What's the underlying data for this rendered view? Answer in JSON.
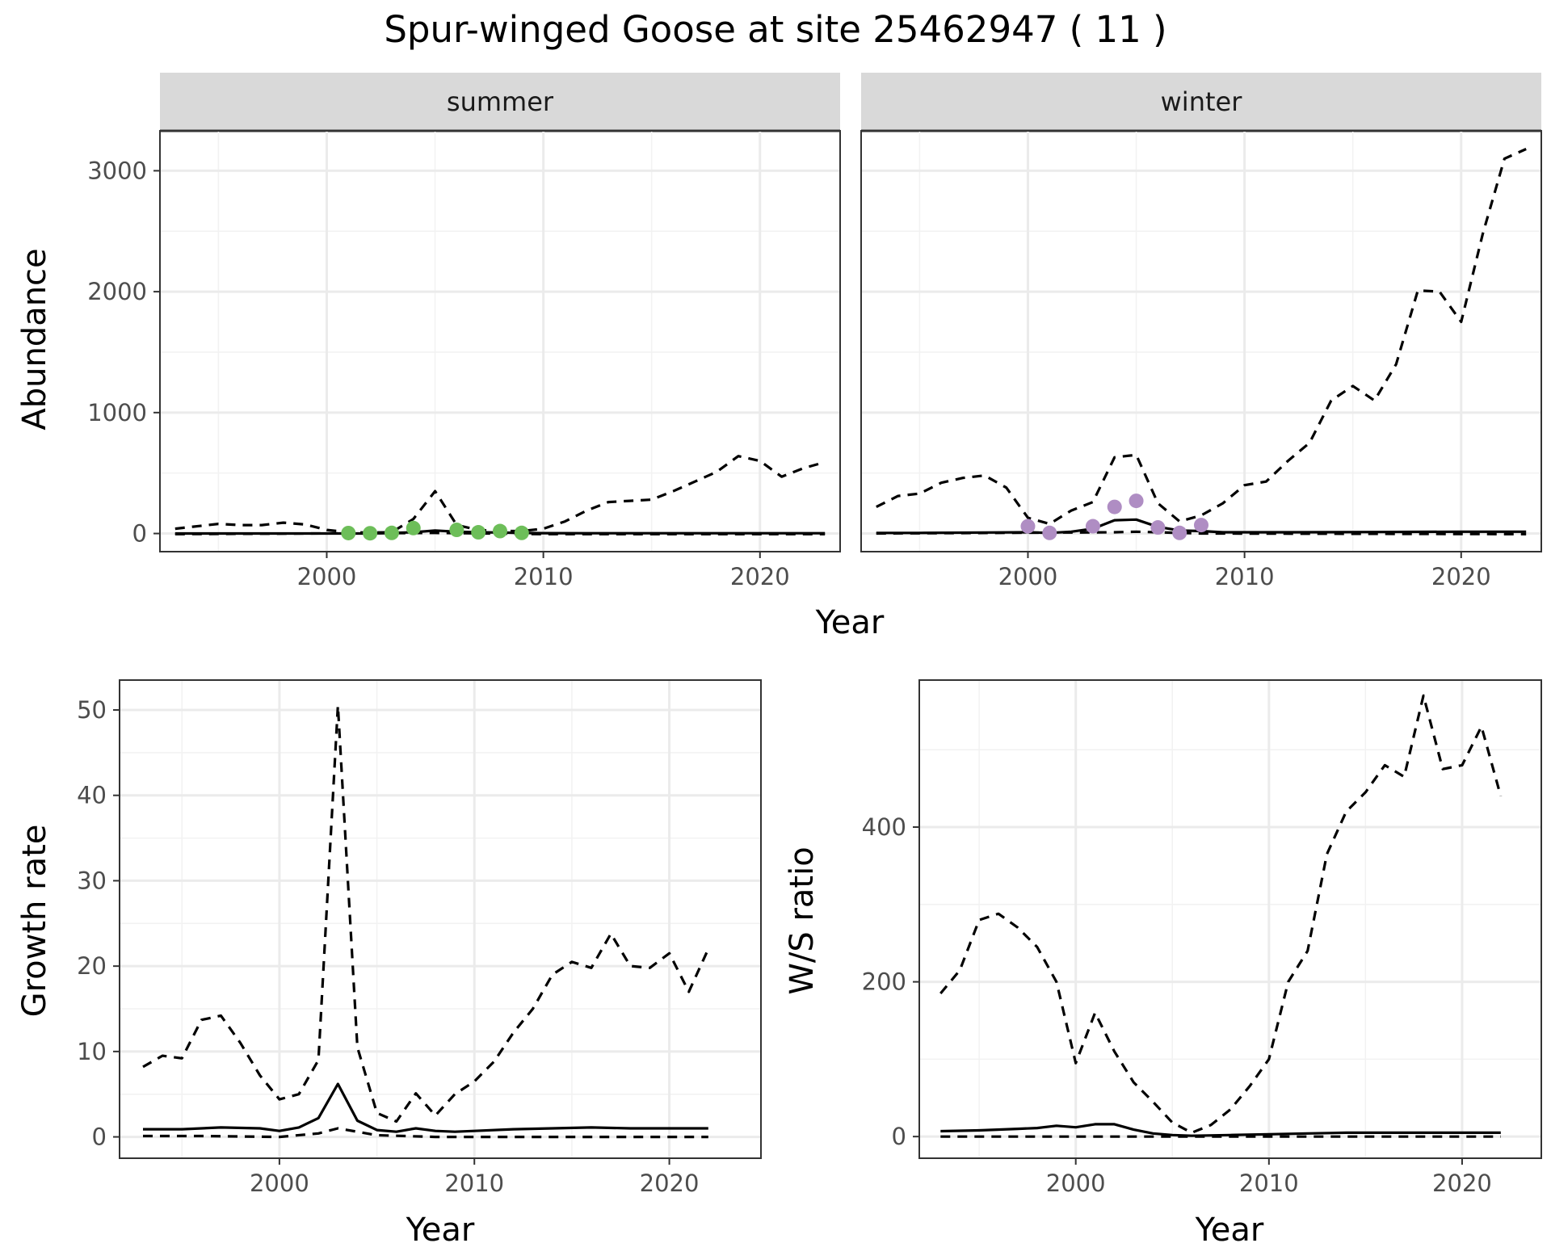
{
  "title": "Spur-winged Goose at site 25462947 ( 11 )",
  "colors": {
    "summer_points": "#6DBE59",
    "winter_points": "#AF8DC3",
    "lines": "#000000",
    "strip_bg": "#D9D9D9",
    "grid": "#EBEBEB"
  },
  "chart_data": [
    {
      "type": "line",
      "facet": "summer",
      "xlabel": "Year",
      "ylabel": "Abundance",
      "xlim": [
        1992.3,
        2023.7
      ],
      "ylim": [
        -150,
        3330
      ],
      "xticks": [
        2000,
        2010,
        2020
      ],
      "yticks": [
        0,
        1000,
        2000,
        3000
      ],
      "grid": true,
      "series": [
        {
          "style": "solid",
          "x": [
            1993,
            1995,
            1997,
            1999,
            2000,
            2001,
            2002,
            2003,
            2004,
            2005,
            2006,
            2007,
            2008,
            2009,
            2010,
            2012,
            2014,
            2016,
            2018,
            2020,
            2022,
            2023
          ],
          "y": [
            0,
            0,
            0,
            0,
            0,
            0,
            0,
            5,
            10,
            25,
            15,
            10,
            8,
            5,
            3,
            2,
            2,
            2,
            2,
            2,
            2,
            2
          ]
        },
        {
          "style": "dashed",
          "x": [
            1993,
            1995,
            1996,
            1997,
            1998,
            1999,
            2000,
            2001,
            2002,
            2003,
            2004,
            2005,
            2006,
            2007,
            2008,
            2009,
            2010,
            2011,
            2012,
            2013,
            2014,
            2015,
            2016,
            2017,
            2018,
            2019,
            2020,
            2021,
            2022,
            2023
          ],
          "y": [
            40,
            80,
            70,
            70,
            90,
            75,
            30,
            10,
            8,
            10,
            120,
            350,
            70,
            30,
            20,
            20,
            40,
            100,
            190,
            260,
            270,
            280,
            350,
            430,
            510,
            640,
            600,
            470,
            540,
            590
          ]
        },
        {
          "style": "dashed",
          "x": [
            1993,
            2005,
            2010,
            2023
          ],
          "y": [
            -5,
            5,
            -5,
            -5
          ]
        }
      ],
      "points": {
        "x": [
          2001,
          2002,
          2003,
          2004,
          2006,
          2007,
          2008,
          2009
        ],
        "y": [
          4,
          2,
          5,
          45,
          30,
          10,
          20,
          5
        ]
      }
    },
    {
      "type": "line",
      "facet": "winter",
      "xlabel": "Year",
      "ylabel": "Abundance",
      "xlim": [
        1992.3,
        2023.7
      ],
      "ylim": [
        -150,
        3330
      ],
      "xticks": [
        2000,
        2010,
        2020
      ],
      "yticks": [
        0,
        1000,
        2000,
        3000
      ],
      "grid": true,
      "series": [
        {
          "style": "solid",
          "x": [
            1993,
            1995,
            1998,
            2000,
            2001,
            2002,
            2003,
            2004,
            2005,
            2006,
            2007,
            2008,
            2009,
            2012,
            2016,
            2020,
            2023
          ],
          "y": [
            5,
            5,
            8,
            10,
            5,
            15,
            40,
            110,
            115,
            55,
            25,
            20,
            10,
            10,
            12,
            15,
            15
          ]
        },
        {
          "style": "dashed",
          "x": [
            1993,
            1994,
            1995,
            1996,
            1997,
            1998,
            1999,
            2000,
            2001,
            2002,
            2003,
            2004,
            2005,
            2006,
            2007,
            2008,
            2009,
            2010,
            2011,
            2012,
            2013,
            2014,
            2015,
            2016,
            2017,
            2018,
            2019,
            2020,
            2021,
            2022,
            2023
          ],
          "y": [
            220,
            310,
            330,
            420,
            460,
            480,
            380,
            130,
            80,
            190,
            260,
            630,
            650,
            250,
            100,
            150,
            250,
            400,
            430,
            600,
            750,
            1100,
            1220,
            1100,
            1400,
            2010,
            2000,
            1750,
            2480,
            3100,
            3180
          ]
        },
        {
          "style": "dashed",
          "x": [
            1993,
            2004,
            2005,
            2008,
            2023
          ],
          "y": [
            0,
            10,
            15,
            0,
            -5
          ]
        }
      ],
      "points": {
        "x": [
          2000,
          2001,
          2003,
          2004,
          2005,
          2006,
          2007,
          2008
        ],
        "y": [
          60,
          5,
          60,
          220,
          270,
          50,
          5,
          70
        ]
      }
    },
    {
      "type": "line",
      "xlabel": "Year",
      "ylabel": "Growth rate",
      "xlim": [
        1991.8,
        2024.7
      ],
      "ylim": [
        -2.5,
        53.5
      ],
      "xticks": [
        2000,
        2010,
        2020
      ],
      "yticks": [
        0,
        10,
        20,
        30,
        40,
        50
      ],
      "grid": true,
      "series": [
        {
          "style": "solid",
          "x": [
            1993,
            1995,
            1997,
            1999,
            2000,
            2001,
            2002,
            2003,
            2004,
            2005,
            2006,
            2007,
            2008,
            2009,
            2010,
            2012,
            2014,
            2016,
            2018,
            2020,
            2022
          ],
          "y": [
            0.9,
            0.9,
            1.1,
            1.0,
            0.7,
            1.1,
            2.2,
            6.2,
            1.9,
            0.8,
            0.6,
            1.0,
            0.7,
            0.6,
            0.7,
            0.9,
            1.0,
            1.1,
            1.0,
            1.0,
            1.0
          ]
        },
        {
          "style": "dashed",
          "x": [
            1993,
            1994,
            1995,
            1996,
            1997,
            1998,
            1999,
            2000,
            2001,
            2002,
            2003,
            2004,
            2005,
            2006,
            2007,
            2008,
            2009,
            2010,
            2011,
            2012,
            2013,
            2014,
            2015,
            2016,
            2017,
            2018,
            2019,
            2020,
            2021,
            2022
          ],
          "y": [
            8.2,
            9.5,
            9.2,
            13.7,
            14.2,
            11.0,
            7.2,
            4.4,
            5.0,
            9.0,
            50.5,
            10.5,
            2.8,
            1.8,
            5.1,
            2.5,
            5.0,
            6.5,
            8.8,
            12.2,
            15.0,
            19.0,
            20.5,
            19.8,
            23.8,
            20.0,
            19.8,
            21.5,
            17.0,
            22.0
          ]
        },
        {
          "style": "dashed",
          "x": [
            1993,
            1996,
            2000,
            2002,
            2003,
            2005,
            2008,
            2012,
            2016,
            2020,
            2022
          ],
          "y": [
            0.1,
            0.1,
            0.0,
            0.4,
            1.0,
            0.2,
            0.0,
            0.0,
            0.0,
            0.0,
            0.0
          ]
        }
      ]
    },
    {
      "type": "line",
      "xlabel": "Year",
      "ylabel": "W/S ratio",
      "xlim": [
        1991.9,
        2024.1
      ],
      "ylim": [
        -28,
        590
      ],
      "xticks": [
        2000,
        2010,
        2020
      ],
      "yticks": [
        0,
        200,
        400
      ],
      "grid": true,
      "series": [
        {
          "style": "solid",
          "x": [
            1993,
            1995,
            1997,
            1998,
            1999,
            2000,
            2001,
            2002,
            2003,
            2004,
            2005,
            2006,
            2008,
            2010,
            2012,
            2014,
            2016,
            2018,
            2020,
            2022
          ],
          "y": [
            7,
            8,
            10,
            11,
            14,
            12,
            16,
            16,
            9,
            4,
            2,
            1,
            2,
            3,
            4,
            5,
            5,
            5,
            5,
            5
          ]
        },
        {
          "style": "dashed",
          "x": [
            1993,
            1994,
            1995,
            1996,
            1997,
            1998,
            1999,
            2000,
            2001,
            2002,
            2003,
            2004,
            2005,
            2006,
            2007,
            2008,
            2009,
            2010,
            2011,
            2012,
            2013,
            2014,
            2015,
            2016,
            2017,
            2018,
            2019,
            2020,
            2021,
            2022
          ],
          "y": [
            185,
            215,
            280,
            288,
            270,
            245,
            200,
            95,
            160,
            110,
            70,
            45,
            18,
            5,
            15,
            35,
            65,
            100,
            200,
            240,
            365,
            420,
            445,
            480,
            465,
            570,
            475,
            480,
            530,
            440
          ]
        },
        {
          "style": "dashed",
          "x": [
            1993,
            2000,
            2005,
            2010,
            2016,
            2022
          ],
          "y": [
            0,
            0,
            0,
            0,
            0,
            0
          ]
        }
      ]
    }
  ]
}
